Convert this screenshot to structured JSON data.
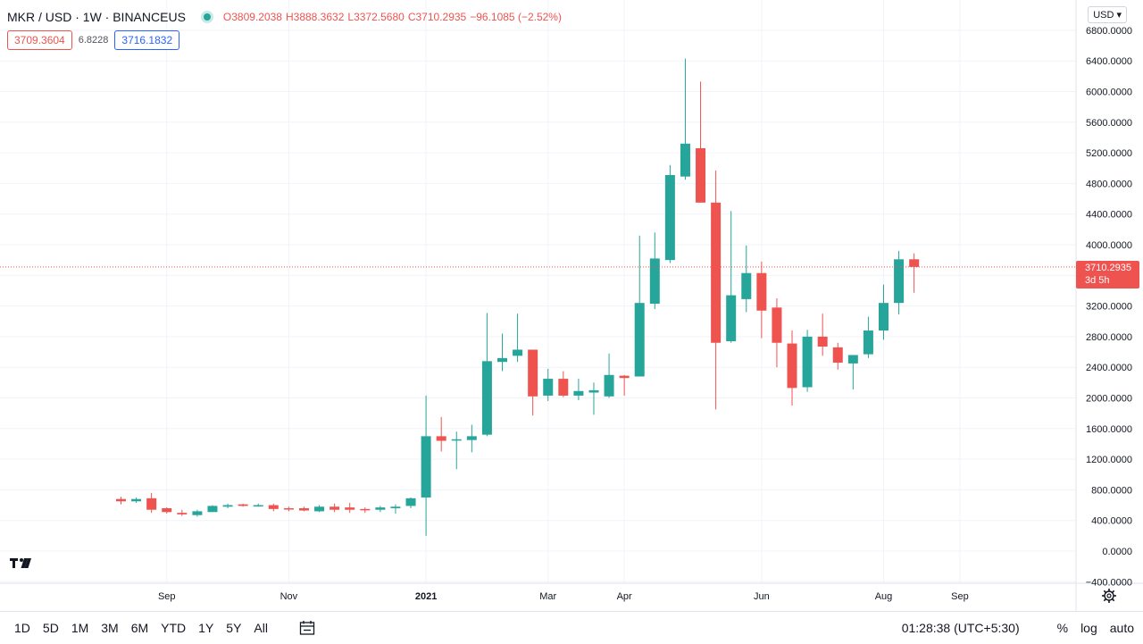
{
  "header": {
    "symbol": "MKR / USD · 1W · BINANCEUS",
    "open_label": "O",
    "open": "3809.2038",
    "high_label": "H",
    "high": "3888.3632",
    "low_label": "L",
    "low": "3372.5680",
    "close_label": "C",
    "close": "3710.2935",
    "change": "−96.1085 (−2.52%)",
    "bid": "3709.3604",
    "spread": "6.8228",
    "ask": "3716.1832",
    "currency": "USD"
  },
  "last_price": {
    "value": "3710.2935",
    "countdown": "3d 5h"
  },
  "colors": {
    "up": "#26a69a",
    "down": "#ef5350",
    "grid": "#f0f3fa"
  },
  "bottom_bar": {
    "ranges": [
      "1D",
      "5D",
      "1M",
      "3M",
      "6M",
      "YTD",
      "1Y",
      "5Y",
      "All"
    ],
    "time": "01:28:38 (UTC+5:30)",
    "percent": "%",
    "log": "log",
    "auto": "auto"
  },
  "chart_data": {
    "type": "candlestick",
    "title": "MKR / USD · 1W · BINANCEUS",
    "ylim": [
      -400,
      6900
    ],
    "y_ticks": [
      -400,
      0,
      400,
      800,
      1200,
      1600,
      2000,
      2400,
      2800,
      3200,
      3600,
      4000,
      4400,
      4800,
      5200,
      5600,
      6000,
      6400,
      6800
    ],
    "y_tick_labels": [
      "−400.0000",
      "0.0000",
      "400.0000",
      "800.0000",
      "1200.0000",
      "1600.0000",
      "2000.0000",
      "2400.0000",
      "2800.0000",
      "3200.0000",
      "3600.0000",
      "4000.0000",
      "4400.0000",
      "4800.0000",
      "5200.0000",
      "5600.0000",
      "6000.0000",
      "6400.0000",
      "6800.0000"
    ],
    "x_tick_labels": [
      "Sep",
      "Nov",
      "2021",
      "Mar",
      "Apr",
      "Jun",
      "Aug",
      "Sep"
    ],
    "x_tick_candle_index": [
      3,
      11,
      20,
      28,
      33,
      42,
      50,
      55
    ],
    "grid": true,
    "candles": [
      {
        "o": 680,
        "h": 710,
        "l": 610,
        "c": 650
      },
      {
        "o": 650,
        "h": 700,
        "l": 630,
        "c": 680
      },
      {
        "o": 690,
        "h": 760,
        "l": 500,
        "c": 540
      },
      {
        "o": 560,
        "h": 570,
        "l": 490,
        "c": 510
      },
      {
        "o": 500,
        "h": 540,
        "l": 460,
        "c": 480
      },
      {
        "o": 470,
        "h": 540,
        "l": 450,
        "c": 520
      },
      {
        "o": 510,
        "h": 600,
        "l": 510,
        "c": 590
      },
      {
        "o": 580,
        "h": 620,
        "l": 560,
        "c": 600
      },
      {
        "o": 610,
        "h": 620,
        "l": 580,
        "c": 590
      },
      {
        "o": 590,
        "h": 620,
        "l": 580,
        "c": 600
      },
      {
        "o": 600,
        "h": 620,
        "l": 520,
        "c": 550
      },
      {
        "o": 560,
        "h": 580,
        "l": 520,
        "c": 550
      },
      {
        "o": 560,
        "h": 580,
        "l": 520,
        "c": 530
      },
      {
        "o": 520,
        "h": 600,
        "l": 510,
        "c": 580
      },
      {
        "o": 580,
        "h": 620,
        "l": 510,
        "c": 540
      },
      {
        "o": 570,
        "h": 630,
        "l": 500,
        "c": 540
      },
      {
        "o": 550,
        "h": 570,
        "l": 500,
        "c": 540
      },
      {
        "o": 540,
        "h": 590,
        "l": 510,
        "c": 570
      },
      {
        "o": 560,
        "h": 610,
        "l": 490,
        "c": 580
      },
      {
        "o": 590,
        "h": 700,
        "l": 560,
        "c": 690
      },
      {
        "o": 700,
        "h": 2030,
        "l": 200,
        "c": 1500
      },
      {
        "o": 1500,
        "h": 1750,
        "l": 1300,
        "c": 1440
      },
      {
        "o": 1450,
        "h": 1560,
        "l": 1070,
        "c": 1460
      },
      {
        "o": 1450,
        "h": 1650,
        "l": 1290,
        "c": 1500
      },
      {
        "o": 1520,
        "h": 3110,
        "l": 1500,
        "c": 2480
      },
      {
        "o": 2470,
        "h": 2840,
        "l": 2350,
        "c": 2520
      },
      {
        "o": 2550,
        "h": 3100,
        "l": 2470,
        "c": 2630
      },
      {
        "o": 2630,
        "h": 2620,
        "l": 1770,
        "c": 2020
      },
      {
        "o": 2030,
        "h": 2380,
        "l": 1960,
        "c": 2250
      },
      {
        "o": 2250,
        "h": 2350,
        "l": 2010,
        "c": 2030
      },
      {
        "o": 2030,
        "h": 2250,
        "l": 1970,
        "c": 2090
      },
      {
        "o": 2070,
        "h": 2200,
        "l": 1780,
        "c": 2100
      },
      {
        "o": 2020,
        "h": 2580,
        "l": 2000,
        "c": 2300
      },
      {
        "o": 2290,
        "h": 2300,
        "l": 2030,
        "c": 2260
      },
      {
        "o": 2280,
        "h": 4120,
        "l": 2280,
        "c": 3240
      },
      {
        "o": 3230,
        "h": 4160,
        "l": 3160,
        "c": 3820
      },
      {
        "o": 3800,
        "h": 5040,
        "l": 3760,
        "c": 4910
      },
      {
        "o": 4890,
        "h": 6430,
        "l": 4850,
        "c": 5320
      },
      {
        "o": 5260,
        "h": 6130,
        "l": 4590,
        "c": 4550
      },
      {
        "o": 4550,
        "h": 4970,
        "l": 1850,
        "c": 2720
      },
      {
        "o": 2740,
        "h": 4440,
        "l": 2720,
        "c": 3340
      },
      {
        "o": 3290,
        "h": 3990,
        "l": 3120,
        "c": 3630
      },
      {
        "o": 3630,
        "h": 3780,
        "l": 2780,
        "c": 3140
      },
      {
        "o": 3180,
        "h": 3300,
        "l": 2400,
        "c": 2720
      },
      {
        "o": 2710,
        "h": 2880,
        "l": 1900,
        "c": 2130
      },
      {
        "o": 2140,
        "h": 2890,
        "l": 2080,
        "c": 2800
      },
      {
        "o": 2800,
        "h": 3100,
        "l": 2550,
        "c": 2670
      },
      {
        "o": 2660,
        "h": 2720,
        "l": 2370,
        "c": 2460
      },
      {
        "o": 2450,
        "h": 2560,
        "l": 2110,
        "c": 2560
      },
      {
        "o": 2570,
        "h": 3060,
        "l": 2520,
        "c": 2880
      },
      {
        "o": 2880,
        "h": 3480,
        "l": 2760,
        "c": 3240
      },
      {
        "o": 3240,
        "h": 3920,
        "l": 3090,
        "c": 3810
      },
      {
        "o": 3810,
        "h": 3888,
        "l": 3373,
        "c": 3710
      }
    ]
  }
}
